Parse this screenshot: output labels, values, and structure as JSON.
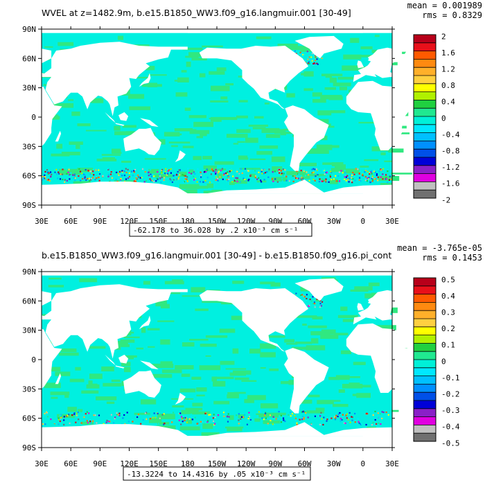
{
  "chart_data": [
    {
      "type": "heatmap",
      "title": "WVEL at z=1482.9m, b.e15.B1850_WW3.f09_g16.langmuir.001 [30-49]",
      "stats": [
        "mean = 0.001989",
        "rms = 0.8329"
      ],
      "range_label": "-62.178 to 36.028 by .2 x10⁻³ cm s⁻¹",
      "x_ticks": [
        "30E",
        "60E",
        "90E",
        "120E",
        "150E",
        "180",
        "150W",
        "120W",
        "90W",
        "60W",
        "30W",
        "0",
        "30E"
      ],
      "y_ticks": [
        "90N",
        "60N",
        "30N",
        "0",
        "30S",
        "60S",
        "90S"
      ],
      "colorbar_labels": [
        "2",
        "1.6",
        "1.2",
        "0.8",
        "0.4",
        "0",
        "-0.4",
        "-0.8",
        "-1.2",
        "-1.6",
        "-2"
      ],
      "colorbar_colors": [
        "#b8001a",
        "#e8101a",
        "#ff5a00",
        "#ff8a10",
        "#ffb02a",
        "#ffd040",
        "#ffff00",
        "#b0f000",
        "#20d040",
        "#20e890",
        "#00f0d8",
        "#00e8ff",
        "#00c0ff",
        "#0090ff",
        "#0050e8",
        "#0000d8",
        "#8a20c8",
        "#e000e0",
        "#c0c0c0",
        "#707070"
      ]
    },
    {
      "type": "heatmap",
      "title": "b.e15.B1850_WW3.f09_g16.langmuir.001 [30-49] - b.e15.B1850.f09_g16.pi_cont",
      "stats": [
        "mean = -3.765e-05",
        "rms = 0.1453"
      ],
      "range_label": "-13.3224 to 14.4316 by .05 x10⁻³ cm s⁻¹",
      "x_ticks": [
        "30E",
        "60E",
        "90E",
        "120E",
        "150E",
        "180",
        "150W",
        "120W",
        "90W",
        "60W",
        "30W",
        "0",
        "30E"
      ],
      "y_ticks": [
        "90N",
        "60N",
        "30N",
        "0",
        "30S",
        "60S",
        "90S"
      ],
      "colorbar_labels": [
        "0.5",
        "0.4",
        "0.3",
        "0.2",
        "0.1",
        "0",
        "-0.1",
        "-0.2",
        "-0.3",
        "-0.4",
        "-0.5"
      ],
      "colorbar_colors": [
        "#b8001a",
        "#e8101a",
        "#ff5a00",
        "#ff8a10",
        "#ffb02a",
        "#ffd040",
        "#ffff00",
        "#b0f000",
        "#20d040",
        "#20e890",
        "#00f0d8",
        "#00e8ff",
        "#00c0ff",
        "#0090ff",
        "#0050e8",
        "#0000d8",
        "#8a20c8",
        "#e000e0",
        "#c0c0c0",
        "#707070"
      ]
    }
  ],
  "colors": {
    "ocean": "#00f0e0",
    "ocean_alt": "#30e880",
    "land": "#ffffff"
  }
}
